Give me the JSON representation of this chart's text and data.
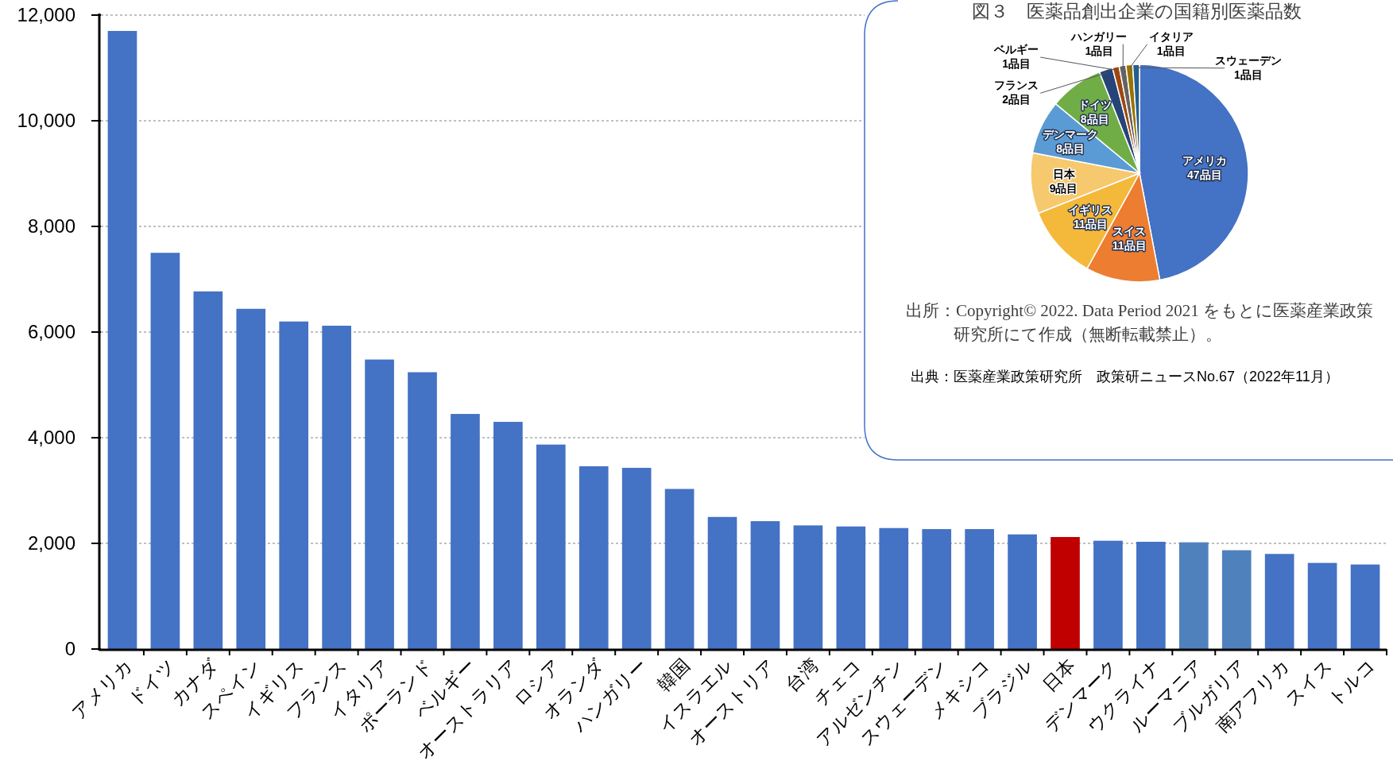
{
  "chart_data": [
    {
      "type": "bar",
      "categories": [
        "アメリカ",
        "ドイツ",
        "カナダ",
        "スペイン",
        "イギリス",
        "フランス",
        "イタリア",
        "ポーランド",
        "ベルギー",
        "オーストラリア",
        "ロシア",
        "オランダ",
        "ハンガリー",
        "韓国",
        "イスラエル",
        "オーストリア",
        "台湾",
        "チェコ",
        "アルゼンチン",
        "スウェーデン",
        "メキシコ",
        "ブラジル",
        "日本",
        "デンマーク",
        "ウクライナ",
        "ルーマニア",
        "ブルガリア",
        "南アフリカ",
        "スイス",
        "トルコ"
      ],
      "values": [
        11700,
        7500,
        6770,
        6440,
        6200,
        6120,
        5480,
        5240,
        4450,
        4300,
        3870,
        3460,
        3430,
        3030,
        2500,
        2420,
        2340,
        2320,
        2290,
        2270,
        2270,
        2170,
        2120,
        2050,
        2030,
        2020,
        1870,
        1800,
        1630,
        1600
      ],
      "colors": [
        "#4472c4",
        "#4472c4",
        "#4472c4",
        "#4472c4",
        "#4472c4",
        "#4472c4",
        "#4472c4",
        "#4472c4",
        "#4472c4",
        "#4472c4",
        "#4472c4",
        "#4472c4",
        "#4472c4",
        "#4472c4",
        "#4472c4",
        "#4472c4",
        "#4472c4",
        "#4472c4",
        "#4472c4",
        "#4472c4",
        "#4472c4",
        "#4472c4",
        "#c00000",
        "#4472c4",
        "#4472c4",
        "#4f81bd",
        "#4f81bd",
        "#4472c4",
        "#4472c4",
        "#4472c4"
      ],
      "ylim": [
        0,
        12000
      ],
      "yticks": [
        {
          "value": 0,
          "label": "0"
        },
        {
          "value": 2000,
          "label": "2,000"
        },
        {
          "value": 4000,
          "label": "4,000"
        },
        {
          "value": 6000,
          "label": "6,000"
        },
        {
          "value": 8000,
          "label": "8,000"
        },
        {
          "value": 10000,
          "label": "10,000"
        },
        {
          "value": 12000,
          "label": "12,000"
        }
      ],
      "grid": "y"
    },
    {
      "type": "pie",
      "title": "図３　医薬品創出企業の国籍別医薬品数",
      "categories": [
        "アメリカ",
        "スイス",
        "イギリス",
        "日本",
        "デンマーク",
        "ドイツ",
        "フランス",
        "ベルギー",
        "ハンガリー",
        "イタリア",
        "スウェーデン"
      ],
      "values": [
        47,
        11,
        11,
        9,
        8,
        8,
        2,
        1,
        1,
        1,
        1
      ],
      "value_labels": [
        "47品目",
        "11品目",
        "11品目",
        "9品目",
        "8品目",
        "8品目",
        "2品目",
        "1品目",
        "1品目",
        "1品目",
        "1品目"
      ],
      "colors": [
        "#4472c4",
        "#ed7d31",
        "#f4b93b",
        "#f6c96e",
        "#5b9bd5",
        "#70ad47",
        "#264478",
        "#9e480e",
        "#636363",
        "#997300",
        "#255e91"
      ],
      "annotations": [
        "出所：Copyright© 2022. Data Period 2021 をもとに医薬産業政策研究所にて作成（無断転載禁止）。",
        "出典：医薬産業政策研究所　政策研ニュースNo.67（2022年11月）"
      ]
    }
  ]
}
